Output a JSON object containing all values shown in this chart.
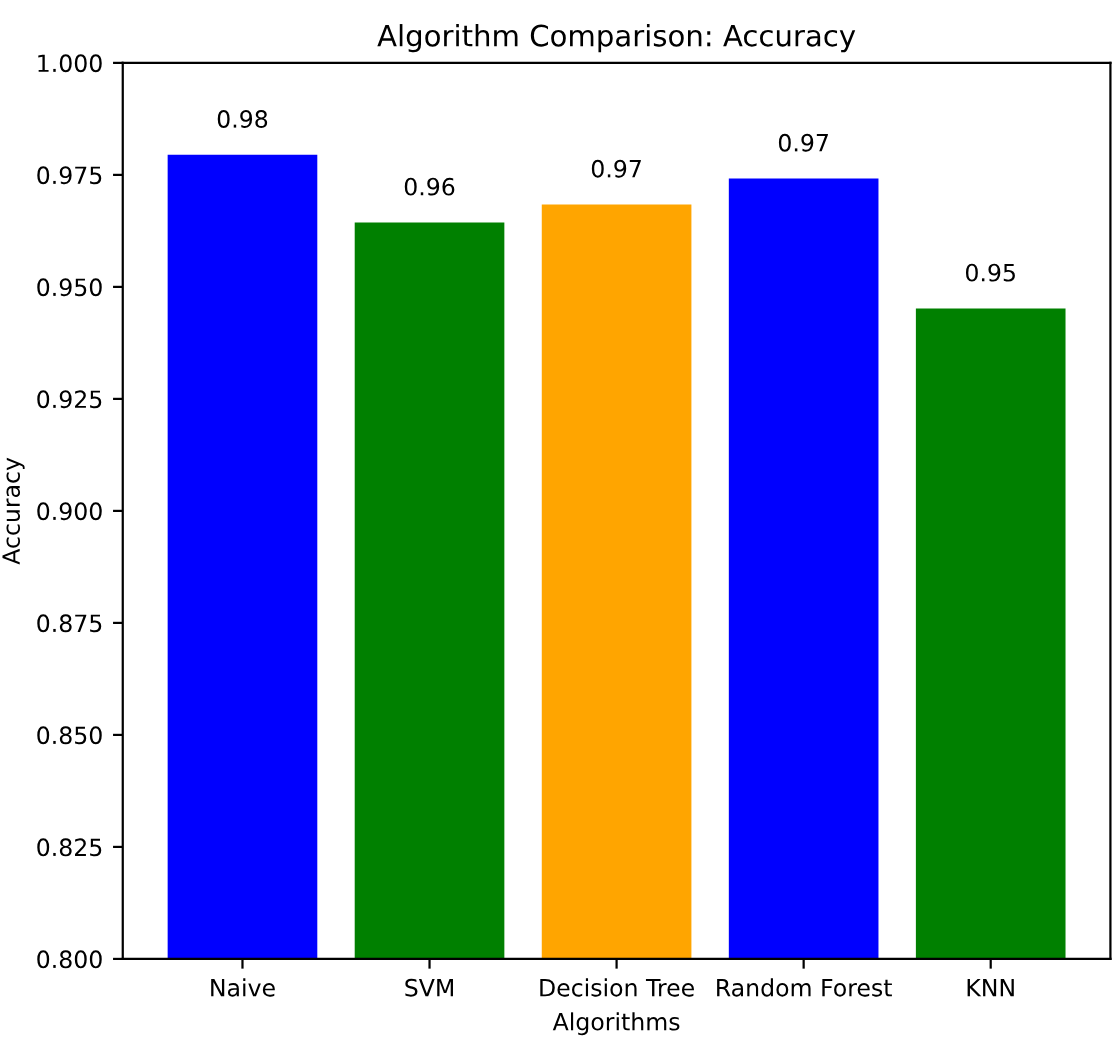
{
  "chart_data": {
    "type": "bar",
    "title": "Algorithm Comparison: Accuracy",
    "xlabel": "Algorithms",
    "ylabel": "Accuracy",
    "categories": [
      "Naive",
      "SVM",
      "Decision Tree",
      "Random Forest",
      "KNN"
    ],
    "values": [
      0.9795,
      0.9644,
      0.9684,
      0.9742,
      0.9452
    ],
    "colors": [
      "#0000ff",
      "#008000",
      "#ffa500",
      "#0000ff",
      "#008000"
    ],
    "value_labels": [
      "0.98",
      "0.96",
      "0.97",
      "0.97",
      "0.95"
    ],
    "ylim": [
      0.8,
      1.0
    ],
    "yticks": [
      {
        "value": 0.8,
        "label": "0.800"
      },
      {
        "value": 0.825,
        "label": "0.825"
      },
      {
        "value": 0.85,
        "label": "0.850"
      },
      {
        "value": 0.875,
        "label": "0.875"
      },
      {
        "value": 0.9,
        "label": "0.900"
      },
      {
        "value": 0.925,
        "label": "0.925"
      },
      {
        "value": 0.95,
        "label": "0.950"
      },
      {
        "value": 0.975,
        "label": "0.975"
      },
      {
        "value": 1.0,
        "label": "1.000"
      }
    ]
  }
}
